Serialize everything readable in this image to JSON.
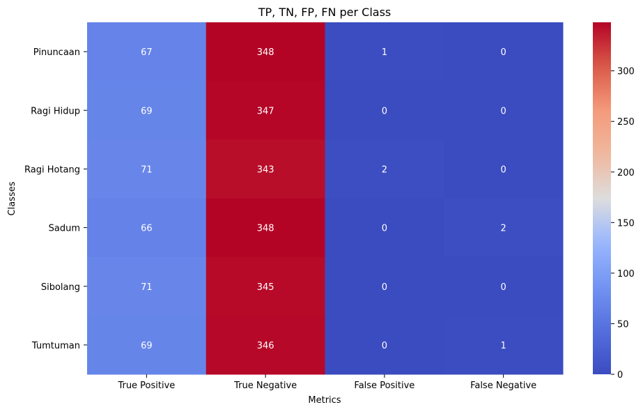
{
  "chart_data": {
    "type": "heatmap",
    "title": "TP, TN, FP, FN per Class",
    "xlabel": "Metrics",
    "ylabel": "Classes",
    "x_categories": [
      "True Positive",
      "True Negative",
      "False Positive",
      "False Negative"
    ],
    "y_categories": [
      "Pinuncaan",
      "Ragi Hidup",
      "Ragi Hotang",
      "Sadum",
      "Sibolang",
      "Tumtuman"
    ],
    "values": [
      [
        67,
        348,
        1,
        0
      ],
      [
        69,
        347,
        0,
        0
      ],
      [
        71,
        343,
        2,
        0
      ],
      [
        66,
        348,
        0,
        2
      ],
      [
        71,
        345,
        0,
        0
      ],
      [
        69,
        346,
        0,
        1
      ]
    ],
    "colormap": "coolwarm",
    "vmin": 0,
    "vmax": 348,
    "colorbar_ticks": [
      0,
      50,
      100,
      150,
      200,
      250,
      300
    ],
    "annotation_color": "#ffffff",
    "grid": false
  }
}
